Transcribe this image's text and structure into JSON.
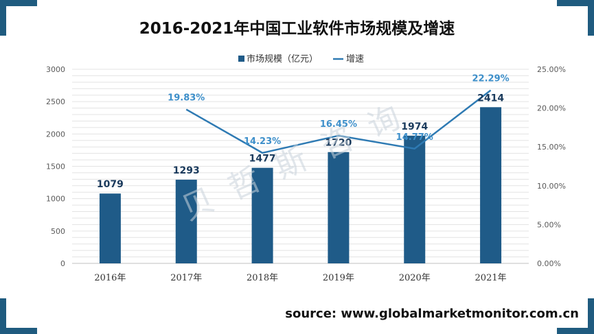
{
  "title": "2016-2021年中国工业软件市场规模及增速",
  "source_text": "source: www.globalmarketmonitor.com.cn",
  "watermark": "贝哲斯咨询",
  "colors": {
    "bar": "#1f5b88",
    "line": "#2e7ab3",
    "line_label": "#3d8fca",
    "accent": "#1f5b7f",
    "grid": "#e3e3e3",
    "axis_text": "#595959"
  },
  "chart_data": {
    "type": "bar",
    "categories": [
      "2016年",
      "2017年",
      "2018年",
      "2019年",
      "2020年",
      "2021年"
    ],
    "series": [
      {
        "name": "市场规模（亿元）",
        "type": "bar",
        "axis": "left",
        "values": [
          1079,
          1293,
          1477,
          1720,
          1974,
          2414
        ],
        "labels": [
          "1079",
          "1293",
          "1477",
          "1720",
          "1974",
          "2414"
        ]
      },
      {
        "name": "增速",
        "type": "line",
        "axis": "right",
        "values": [
          null,
          19.83,
          14.23,
          16.45,
          14.77,
          22.29
        ],
        "labels": [
          "",
          "19.83%",
          "14.23%",
          "16.45%",
          "14.77%",
          "22.29%"
        ]
      }
    ],
    "y_left": {
      "min": 0,
      "max": 3000,
      "ticks": [
        "0",
        "500",
        "1000",
        "1500",
        "2000",
        "2500",
        "3000"
      ]
    },
    "y_right": {
      "min": 0,
      "max": 25,
      "ticks": [
        "0.00%",
        "5.00%",
        "10.00%",
        "15.00%",
        "20.00%",
        "25.00%"
      ]
    },
    "legend_position": "top-center",
    "grid": true
  }
}
